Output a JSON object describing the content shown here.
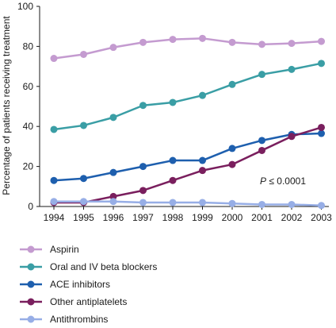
{
  "chart_data": {
    "type": "line",
    "title": "",
    "xlabel": "",
    "ylabel": "Percentage of patients receiving treatment",
    "x": [
      "1994",
      "1995",
      "1996",
      "1997",
      "1998",
      "1999",
      "2000",
      "2001",
      "2002",
      "2003"
    ],
    "ylim": [
      0,
      100
    ],
    "yticks": [
      "0",
      "20",
      "40",
      "60",
      "80",
      "100"
    ],
    "grid": false,
    "legend_position": "bottom",
    "annotation": {
      "p_symbol": "P",
      "text": " ≤ 0.0001"
    },
    "series": [
      {
        "name": "Aspirin",
        "color": "#c49bd0",
        "values": [
          74,
          76,
          79.5,
          82,
          83.5,
          84,
          82,
          81,
          81.5,
          82.5
        ]
      },
      {
        "name": "Oral and IV beta blockers",
        "color": "#3a9ea5",
        "values": [
          38.5,
          40.5,
          44.5,
          50.5,
          52,
          55.5,
          61,
          66,
          68.5,
          71.5
        ]
      },
      {
        "name": "ACE inhibitors",
        "color": "#1e5fae",
        "values": [
          13,
          14,
          17,
          20,
          23,
          23,
          29,
          33,
          36,
          36.5
        ]
      },
      {
        "name": "Other antiplatelets",
        "color": "#7a1f5e",
        "values": [
          2,
          2,
          5,
          8,
          13,
          18,
          21,
          28,
          35,
          39.5
        ]
      },
      {
        "name": "Antithrombins",
        "color": "#97aee6",
        "values": [
          2.5,
          2.5,
          2.5,
          2,
          2,
          2,
          1.5,
          1,
          1,
          0.5
        ]
      }
    ]
  }
}
